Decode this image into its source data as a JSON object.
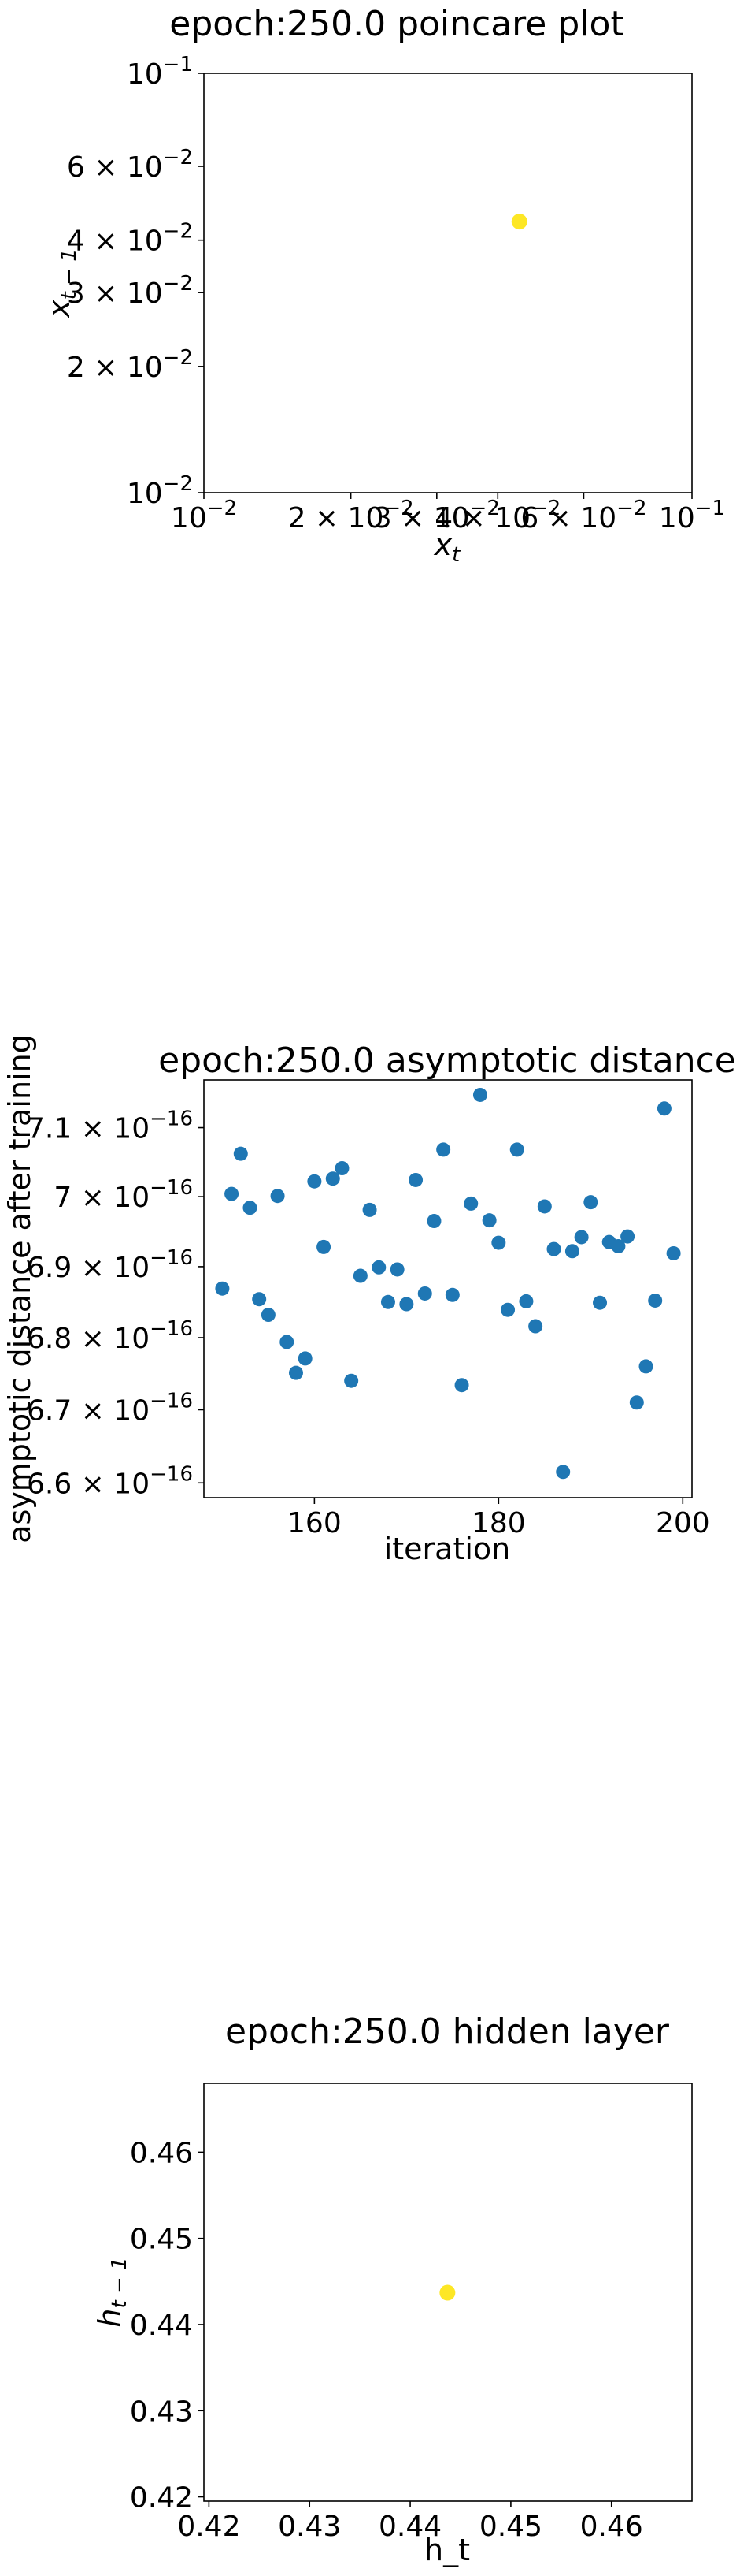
{
  "colors": {
    "scatter_blue": "#1f77b4",
    "point_yellow": "#fde725",
    "frame": "#000000",
    "background": "#ffffff"
  },
  "chart_data": [
    {
      "type": "scatter",
      "title": "epoch:250.0 poincare plot",
      "xlabel": "x_t",
      "ylabel": "x_{t-1}",
      "xscale": "log",
      "yscale": "log",
      "xlim": [
        0.01,
        0.1
      ],
      "ylim": [
        0.01,
        0.1
      ],
      "x_ticks": [
        {
          "value": 0.01,
          "mantissa": "",
          "base": "10",
          "exp": "−2"
        },
        {
          "value": 0.02,
          "mantissa": "2 × ",
          "base": "10",
          "exp": "−2"
        },
        {
          "value": 0.03,
          "mantissa": "3 × ",
          "base": "10",
          "exp": "−2"
        },
        {
          "value": 0.04,
          "mantissa": "4 × ",
          "base": "10",
          "exp": "−2"
        },
        {
          "value": 0.06,
          "mantissa": "6 × ",
          "base": "10",
          "exp": "−2"
        },
        {
          "value": 0.1,
          "mantissa": "",
          "base": "10",
          "exp": "−1"
        }
      ],
      "y_ticks": [
        {
          "value": 0.01,
          "mantissa": "",
          "base": "10",
          "exp": "−2"
        },
        {
          "value": 0.02,
          "mantissa": "2 × ",
          "base": "10",
          "exp": "−2"
        },
        {
          "value": 0.03,
          "mantissa": "3 × ",
          "base": "10",
          "exp": "−2"
        },
        {
          "value": 0.04,
          "mantissa": "4 × ",
          "base": "10",
          "exp": "−2"
        },
        {
          "value": 0.06,
          "mantissa": "6 × ",
          "base": "10",
          "exp": "−2"
        },
        {
          "value": 0.1,
          "mantissa": "",
          "base": "10",
          "exp": "−1"
        }
      ],
      "points": [
        {
          "x": 0.0443,
          "y": 0.0443
        }
      ],
      "grid": false
    },
    {
      "type": "scatter",
      "title": "epoch:250.0 asymptotic distance",
      "xlabel": "iteration",
      "ylabel": "asymptotic distance after training",
      "yscale": "log",
      "xlim": [
        148,
        201
      ],
      "ylim": [
        6.58e-16,
        7.17e-16
      ],
      "x_ticks": [
        {
          "value": 160,
          "label": "160"
        },
        {
          "value": 180,
          "label": "180"
        },
        {
          "value": 200,
          "label": "200"
        }
      ],
      "y_ticks": [
        {
          "value": 6.6e-16,
          "mantissa": "6.6 × ",
          "base": "10",
          "exp": "−16"
        },
        {
          "value": 6.7e-16,
          "mantissa": "6.7 × ",
          "base": "10",
          "exp": "−16"
        },
        {
          "value": 6.8e-16,
          "mantissa": "6.8 × ",
          "base": "10",
          "exp": "−16"
        },
        {
          "value": 6.9e-16,
          "mantissa": "6.9 × ",
          "base": "10",
          "exp": "−16"
        },
        {
          "value": 7e-16,
          "mantissa": "7 × ",
          "base": "10",
          "exp": "−16"
        },
        {
          "value": 7.1e-16,
          "mantissa": "7.1 × ",
          "base": "10",
          "exp": "−16"
        }
      ],
      "x": [
        150,
        151,
        152,
        153,
        154,
        155,
        156,
        157,
        158,
        159,
        160,
        161,
        162,
        163,
        164,
        165,
        166,
        167,
        168,
        169,
        170,
        171,
        172,
        173,
        174,
        175,
        176,
        177,
        178,
        179,
        180,
        181,
        182,
        183,
        184,
        185,
        186,
        187,
        188,
        189,
        190,
        191,
        192,
        193,
        194,
        195,
        196,
        197,
        198,
        199
      ],
      "y": [
        6.869e-16,
        7.004e-16,
        7.062e-16,
        6.984e-16,
        6.854e-16,
        6.832e-16,
        7.001e-16,
        6.794e-16,
        6.751e-16,
        6.771e-16,
        7.022e-16,
        6.928e-16,
        7.026e-16,
        7.041e-16,
        6.74e-16,
        6.887e-16,
        6.981e-16,
        6.899e-16,
        6.85e-16,
        6.896e-16,
        6.847e-16,
        7.024e-16,
        6.862e-16,
        6.965e-16,
        7.068e-16,
        6.86e-16,
        6.734e-16,
        6.99e-16,
        7.148e-16,
        6.966e-16,
        6.934e-16,
        6.839e-16,
        7.068e-16,
        6.851e-16,
        6.816e-16,
        6.986e-16,
        6.925e-16,
        6.615e-16,
        6.922e-16,
        6.942e-16,
        6.992e-16,
        6.849e-16,
        6.935e-16,
        6.929e-16,
        6.943e-16,
        6.71e-16,
        6.76e-16,
        6.852e-16,
        7.128e-16,
        6.919e-16
      ],
      "grid": false
    },
    {
      "type": "scatter",
      "title": "epoch:250.0 hidden layer",
      "xlabel": "h_t",
      "ylabel": "h_{t-1}",
      "xlim": [
        0.4195,
        0.468
      ],
      "ylim": [
        0.4195,
        0.468
      ],
      "x_ticks": [
        {
          "value": 0.42,
          "label": "0.42"
        },
        {
          "value": 0.43,
          "label": "0.43"
        },
        {
          "value": 0.44,
          "label": "0.44"
        },
        {
          "value": 0.45,
          "label": "0.45"
        },
        {
          "value": 0.46,
          "label": "0.46"
        }
      ],
      "y_ticks": [
        {
          "value": 0.42,
          "label": "0.42"
        },
        {
          "value": 0.43,
          "label": "0.43"
        },
        {
          "value": 0.44,
          "label": "0.44"
        },
        {
          "value": 0.45,
          "label": "0.45"
        },
        {
          "value": 0.46,
          "label": "0.46"
        }
      ],
      "points": [
        {
          "x": 0.4437,
          "y": 0.4437
        }
      ],
      "grid": false
    }
  ]
}
